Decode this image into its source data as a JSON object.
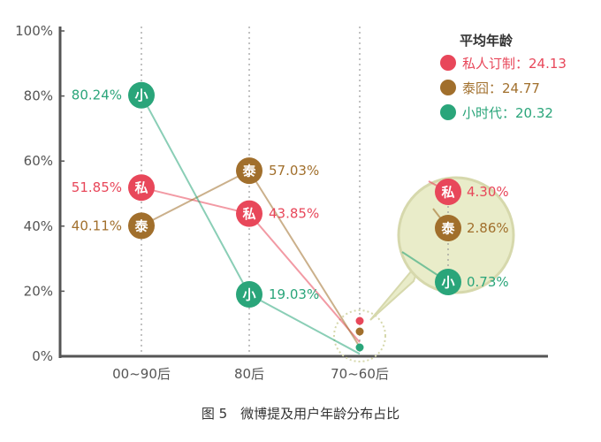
{
  "chart_data": {
    "type": "line",
    "categories": [
      "00~90后",
      "80后",
      "70~60后"
    ],
    "ylim": [
      0,
      100
    ],
    "yticks": [
      "0%",
      "20%",
      "40%",
      "60%",
      "80%",
      "100%"
    ],
    "series": [
      {
        "name": "私人订制",
        "badge": "私",
        "color": "#e8475a",
        "values": [
          51.85,
          43.85,
          4.3
        ],
        "labels": [
          "51.85%",
          "43.85%",
          "4.30%"
        ]
      },
      {
        "name": "泰囧",
        "badge": "泰",
        "color": "#a16f2c",
        "values": [
          40.11,
          57.03,
          2.86
        ],
        "labels": [
          "40.11%",
          "57.03%",
          "2.86%"
        ]
      },
      {
        "name": "小时代",
        "badge": "小",
        "color": "#2aa57a",
        "values": [
          80.24,
          19.03,
          0.73
        ],
        "labels": [
          "80.24%",
          "19.03%",
          "0.73%"
        ]
      }
    ],
    "legend": {
      "title": "平均年龄",
      "placement": "top-right",
      "items": [
        "私人订制：24.13",
        "泰囧：24.77",
        "小时代：20.32"
      ]
    },
    "grid": "vertical-dotted",
    "caption": "图 5　微博提及用户年龄分布占比"
  }
}
